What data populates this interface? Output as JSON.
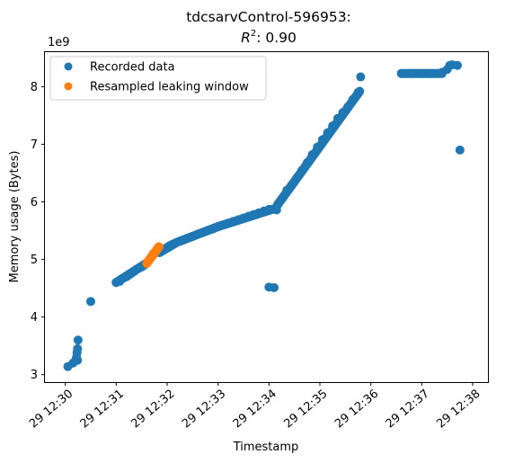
{
  "chart_data": {
    "type": "scatter",
    "title_line1": "tdcsarvControl-596953:",
    "title_line2_prefix": "R",
    "title_line2_sup": "2",
    "title_line2_suffix": ": 0.90",
    "xlabel": "Timestamp",
    "ylabel": "Memory usage (Bytes)",
    "y_offset_label": "1e9",
    "x_unit": "minutes after 12:30",
    "xlim": [
      -0.4,
      8.3
    ],
    "ylim": [
      2.87,
      8.6
    ],
    "x_ticks": [
      {
        "value": 0,
        "label": "29 12:30"
      },
      {
        "value": 1,
        "label": "29 12:31"
      },
      {
        "value": 2,
        "label": "29 12:32"
      },
      {
        "value": 3,
        "label": "29 12:33"
      },
      {
        "value": 4,
        "label": "29 12:34"
      },
      {
        "value": 5,
        "label": "29 12:35"
      },
      {
        "value": 6,
        "label": "29 12:36"
      },
      {
        "value": 7,
        "label": "29 12:37"
      },
      {
        "value": 8,
        "label": "29 12:38"
      }
    ],
    "y_ticks": [
      {
        "value": 3,
        "label": "3"
      },
      {
        "value": 4,
        "label": "4"
      },
      {
        "value": 5,
        "label": "5"
      },
      {
        "value": 6,
        "label": "6"
      },
      {
        "value": 7,
        "label": "7"
      },
      {
        "value": 8,
        "label": "8"
      }
    ],
    "legend_position": "upper-left",
    "series": [
      {
        "name": "Recorded data",
        "color": "#1f77b4",
        "points": [
          [
            0.05,
            3.14
          ],
          [
            0.15,
            3.2
          ],
          [
            0.2,
            3.24
          ],
          [
            0.22,
            3.3
          ],
          [
            0.23,
            3.38
          ],
          [
            0.24,
            3.45
          ],
          [
            0.25,
            3.6
          ],
          [
            0.24,
            3.25
          ],
          [
            0.5,
            4.27
          ],
          [
            1.0,
            4.6
          ],
          [
            1.07,
            4.62
          ],
          [
            1.1,
            4.66
          ],
          [
            1.15,
            4.68
          ],
          [
            1.2,
            4.7
          ],
          [
            1.25,
            4.73
          ],
          [
            1.3,
            4.76
          ],
          [
            1.35,
            4.79
          ],
          [
            1.4,
            4.83
          ],
          [
            1.45,
            4.85
          ],
          [
            1.5,
            4.87
          ],
          [
            1.55,
            4.9
          ],
          [
            1.6,
            4.94
          ],
          [
            1.85,
            5.12
          ],
          [
            1.9,
            5.15
          ],
          [
            1.95,
            5.18
          ],
          [
            2.0,
            5.21
          ],
          [
            2.05,
            5.24
          ],
          [
            2.1,
            5.26
          ],
          [
            2.15,
            5.28
          ],
          [
            2.2,
            5.3
          ],
          [
            2.3,
            5.33
          ],
          [
            2.4,
            5.37
          ],
          [
            2.5,
            5.4
          ],
          [
            2.6,
            5.44
          ],
          [
            2.7,
            5.47
          ],
          [
            2.8,
            5.5
          ],
          [
            2.9,
            5.53
          ],
          [
            3.0,
            5.57
          ],
          [
            3.1,
            5.6
          ],
          [
            3.2,
            5.63
          ],
          [
            3.3,
            5.66
          ],
          [
            3.4,
            5.69
          ],
          [
            3.5,
            5.72
          ],
          [
            3.6,
            5.75
          ],
          [
            3.7,
            5.78
          ],
          [
            3.8,
            5.81
          ],
          [
            3.9,
            5.84
          ],
          [
            4.0,
            5.87
          ],
          [
            4.1,
            5.88
          ],
          [
            4.15,
            5.86
          ],
          [
            4.17,
            5.95
          ],
          [
            4.25,
            6.05
          ],
          [
            4.35,
            6.2
          ],
          [
            4.45,
            6.3
          ],
          [
            4.55,
            6.42
          ],
          [
            4.65,
            6.55
          ],
          [
            4.75,
            6.68
          ],
          [
            4.85,
            6.82
          ],
          [
            4.95,
            6.95
          ],
          [
            5.05,
            7.08
          ],
          [
            5.15,
            7.2
          ],
          [
            5.25,
            7.32
          ],
          [
            5.35,
            7.45
          ],
          [
            5.45,
            7.55
          ],
          [
            5.55,
            7.65
          ],
          [
            5.65,
            7.78
          ],
          [
            5.75,
            7.9
          ],
          [
            5.8,
            8.17
          ],
          [
            4.0,
            4.52
          ],
          [
            4.1,
            4.51
          ],
          [
            6.6,
            8.23
          ],
          [
            6.8,
            8.23
          ],
          [
            7.0,
            8.23
          ],
          [
            7.2,
            8.23
          ],
          [
            7.4,
            8.25
          ],
          [
            7.5,
            8.3
          ],
          [
            7.55,
            8.37
          ],
          [
            7.6,
            8.38
          ],
          [
            7.7,
            8.37
          ],
          [
            7.75,
            6.9
          ]
        ]
      },
      {
        "name": "Resampled leaking window",
        "color": "#ff7f0e",
        "points": [
          [
            1.62,
            4.95
          ],
          [
            1.65,
            5.0
          ],
          [
            1.68,
            5.04
          ],
          [
            1.72,
            5.09
          ],
          [
            1.76,
            5.13
          ],
          [
            1.8,
            5.18
          ],
          [
            1.82,
            5.2
          ]
        ]
      }
    ],
    "line_segments": [
      {
        "series": 0,
        "from": [
          1.0,
          4.6
        ],
        "to": [
          1.6,
          4.94
        ]
      },
      {
        "series": 0,
        "from": [
          1.85,
          5.12
        ],
        "to": [
          2.2,
          5.3
        ]
      },
      {
        "series": 0,
        "from": [
          2.2,
          5.3
        ],
        "to": [
          3.0,
          5.57
        ]
      },
      {
        "series": 0,
        "from": [
          3.0,
          5.57
        ],
        "to": [
          4.1,
          5.88
        ]
      },
      {
        "series": 0,
        "from": [
          4.17,
          5.95
        ],
        "to": [
          4.8,
          6.72
        ]
      },
      {
        "series": 0,
        "from": [
          4.8,
          6.72
        ],
        "to": [
          5.78,
          7.92
        ]
      },
      {
        "series": 0,
        "from": [
          6.6,
          8.23
        ],
        "to": [
          7.4,
          8.23
        ]
      },
      {
        "series": 1,
        "from": [
          1.6,
          4.93
        ],
        "to": [
          1.84,
          5.22
        ]
      }
    ]
  }
}
